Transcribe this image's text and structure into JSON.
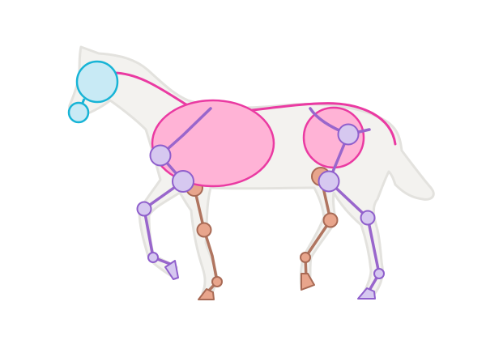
{
  "diagram": {
    "subject": "horse-skeleton-construction",
    "colors": {
      "background": "#ffffff",
      "silhouette_fill": "#f3f2ef",
      "silhouette_stroke": "#e3e2de",
      "mass_fill": "#ffb3d6",
      "mass_stroke": "#ea3aa2",
      "spine": "#ea3aa2",
      "head_fill": "#c8eaf5",
      "head_stroke": "#18b4d6",
      "near_leg_bone": "#9966cc",
      "near_leg_joint_fill": "#d6c8f0",
      "near_leg_joint_stroke": "#8f5fcc",
      "far_leg_bone": "#b07560",
      "far_leg_joint_fill": "#e8a58c",
      "far_leg_joint_stroke": "#a86a55"
    },
    "parts": {
      "head": "head-circle",
      "muzzle": "muzzle-circle",
      "chest": "chest-ellipse",
      "hindquarters": "hindquarters-circle",
      "spine": "spine-curve",
      "near_foreleg": "near-foreleg",
      "near_hindleg": "near-hindleg",
      "far_foreleg": "far-foreleg",
      "far_hindleg": "far-hindleg"
    }
  }
}
